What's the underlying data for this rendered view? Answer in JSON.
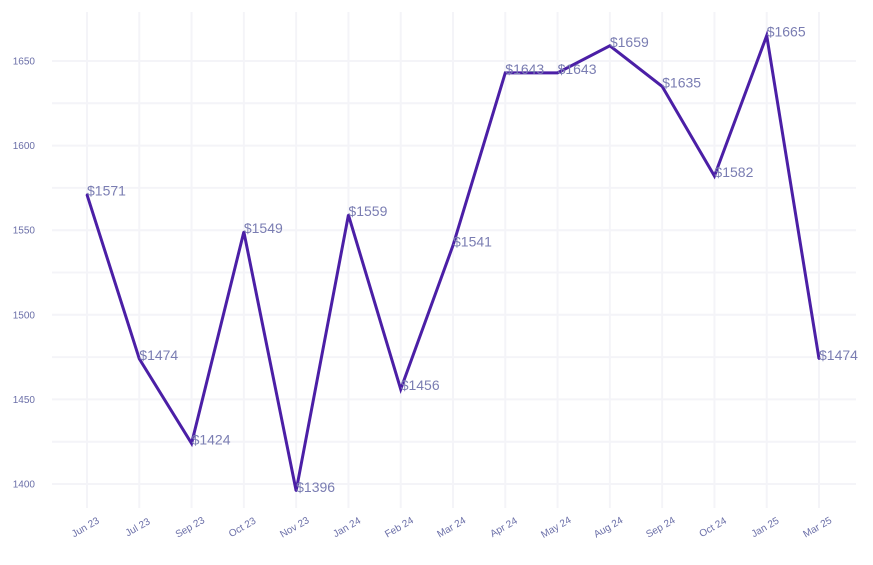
{
  "chart_data": {
    "type": "line",
    "title": "",
    "xlabel": "",
    "ylabel": "",
    "categories": [
      "Jun 23",
      "Jul 23",
      "Sep 23",
      "Oct 23",
      "Nov 23",
      "Jan 24",
      "Feb 24",
      "Mar 24",
      "Apr 24",
      "May 24",
      "Aug 24",
      "Sep 24",
      "Oct 24",
      "Jan 25",
      "Mar 25"
    ],
    "series": [
      {
        "values": [
          1571,
          1474,
          1424,
          1549,
          1396,
          1559,
          1456,
          1541,
          1643,
          1643,
          1659,
          1635,
          1582,
          1665,
          1474
        ],
        "data_labels": [
          "$1571",
          "$1474",
          "$1424",
          "$1549",
          "$1396",
          "$1559",
          "$1456",
          "$1541",
          "$1643",
          "$1643",
          "$1659",
          "$1635",
          "$1582",
          "$1665",
          "$1474"
        ]
      }
    ],
    "y_ticks": [
      "1400",
      "1450",
      "1500",
      "1550",
      "1600",
      "1650"
    ],
    "ylim": [
      1380,
      1680
    ],
    "grid": true,
    "legend": "none",
    "line_color": "#4b1fa6",
    "label_color": "#7a7db2",
    "tick_color": "#6b6fa8"
  }
}
